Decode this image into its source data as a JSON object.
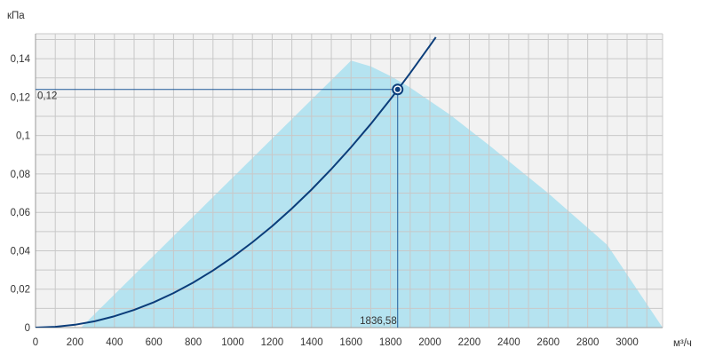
{
  "chart_data": {
    "type": "area",
    "y_unit": "кПа",
    "x_unit": "м³/ч",
    "xlim": [
      0,
      3180
    ],
    "ylim": [
      0,
      0.153
    ],
    "x_ticks": [
      0,
      200,
      400,
      600,
      800,
      1000,
      1200,
      1400,
      1600,
      1800,
      2000,
      2200,
      2400,
      2600,
      2800,
      3000
    ],
    "x_tick_labels": [
      "0",
      "200",
      "400",
      "600",
      "800",
      "1000",
      "1200",
      "1400",
      "1600",
      "1800",
      "2000",
      "2200",
      "2400",
      "2600",
      "2800",
      "3000"
    ],
    "y_ticks": [
      0,
      0.02,
      0.04,
      0.06,
      0.08,
      0.1,
      0.12,
      0.14
    ],
    "y_tick_labels": [
      "0",
      "0,02",
      "0,04",
      "0,06",
      "0,08",
      "0,1",
      "0,12",
      "0,14"
    ],
    "grid": true,
    "operating_region": {
      "color": "#b5e3f0",
      "points": [
        [
          230,
          0
        ],
        [
          1600,
          0.139
        ],
        [
          1700,
          0.136
        ],
        [
          1800,
          0.131
        ],
        [
          1900,
          0.125
        ],
        [
          2000,
          0.118
        ],
        [
          2100,
          0.111
        ],
        [
          2300,
          0.095
        ],
        [
          2600,
          0.07
        ],
        [
          2900,
          0.043
        ],
        [
          3180,
          0
        ]
      ]
    },
    "system_curve": {
      "color": "#0b3d7a",
      "x": [
        0,
        100,
        200,
        300,
        400,
        500,
        600,
        700,
        800,
        900,
        1000,
        1100,
        1200,
        1300,
        1400,
        1500,
        1600,
        1700,
        1800,
        1836.58,
        1900,
        2000,
        2030
      ],
      "y": [
        0,
        0.0004,
        0.0015,
        0.0033,
        0.0059,
        0.0092,
        0.0132,
        0.018,
        0.0235,
        0.0297,
        0.0367,
        0.0444,
        0.0528,
        0.062,
        0.0719,
        0.0825,
        0.0939,
        0.106,
        0.1189,
        0.1238,
        0.1325,
        0.1468,
        0.1512
      ]
    },
    "operating_point": {
      "x": 1836.58,
      "y": 0.124,
      "x_label": "1836,58",
      "y_label": "0,12"
    }
  }
}
